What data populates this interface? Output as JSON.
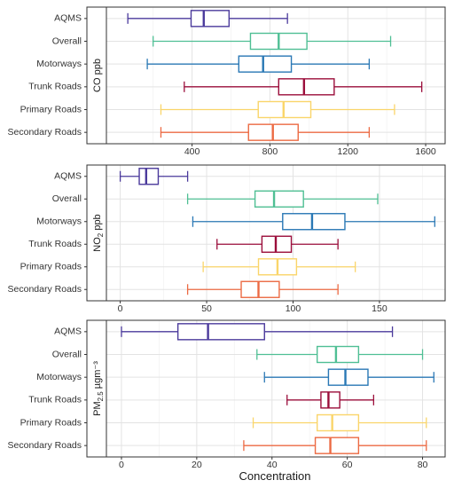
{
  "chart_data": {
    "type": "boxplot",
    "xlabel": "Concentration",
    "categories": [
      "AQMS",
      "Overall",
      "Motorways",
      "Trunk Roads",
      "Primary Roads",
      "Secondary Roads"
    ],
    "colors": {
      "AQMS": "#4b3a9c",
      "Overall": "#4fbf94",
      "Motorways": "#2a78b5",
      "Trunk Roads": "#9b0e3b",
      "Primary Roads": "#fad56a",
      "Secondary Roads": "#ec6a43"
    },
    "panels": [
      {
        "strip": "CO ppb",
        "strip_main": "CO ppb",
        "xlim": [
          -40,
          1700
        ],
        "xticks": [
          400,
          800,
          1200,
          1600
        ],
        "tick_labels": [
          "400",
          "800",
          "1200",
          "1600"
        ],
        "boxes": [
          {
            "category": "AQMS",
            "whisker_low": 70,
            "q1": 395,
            "median": 460,
            "q3": 590,
            "whisker_high": 890
          },
          {
            "category": "Overall",
            "whisker_low": 200,
            "q1": 700,
            "median": 845,
            "q3": 990,
            "whisker_high": 1420
          },
          {
            "category": "Motorways",
            "whisker_low": 170,
            "q1": 640,
            "median": 765,
            "q3": 910,
            "whisker_high": 1310
          },
          {
            "category": "Trunk Roads",
            "whisker_low": 360,
            "q1": 845,
            "median": 975,
            "q3": 1130,
            "whisker_high": 1580
          },
          {
            "category": "Primary Roads",
            "whisker_low": 240,
            "q1": 740,
            "median": 870,
            "q3": 1010,
            "whisker_high": 1440
          },
          {
            "category": "Secondary Roads",
            "whisker_low": 240,
            "q1": 690,
            "median": 815,
            "q3": 945,
            "whisker_high": 1310
          }
        ]
      },
      {
        "strip": "NO2 ppb",
        "strip_main": "NO",
        "strip_sub": "2",
        "strip_rest": " ppb",
        "xlim": [
          -8,
          188
        ],
        "xticks": [
          0,
          50,
          100,
          150
        ],
        "tick_labels": [
          "0",
          "50",
          "100",
          "150"
        ],
        "boxes": [
          {
            "category": "AQMS",
            "whisker_low": 0,
            "q1": 11,
            "median": 15,
            "q3": 22,
            "whisker_high": 39
          },
          {
            "category": "Overall",
            "whisker_low": 39,
            "q1": 78,
            "median": 89,
            "q3": 106,
            "whisker_high": 149
          },
          {
            "category": "Motorways",
            "whisker_low": 42,
            "q1": 94,
            "median": 111,
            "q3": 130,
            "whisker_high": 182
          },
          {
            "category": "Trunk Roads",
            "whisker_low": 56,
            "q1": 82,
            "median": 90,
            "q3": 99,
            "whisker_high": 126
          },
          {
            "category": "Primary Roads",
            "whisker_low": 48,
            "q1": 80,
            "median": 91,
            "q3": 102,
            "whisker_high": 136
          },
          {
            "category": "Secondary Roads",
            "whisker_low": 39,
            "q1": 70,
            "median": 80,
            "q3": 92,
            "whisker_high": 126
          }
        ]
      },
      {
        "strip": "PM2.5 µgm⁻³",
        "strip_main": "PM",
        "strip_sub": "2.5",
        "strip_rest": " µgm⁻³",
        "xlim": [
          -4,
          86
        ],
        "xticks": [
          0,
          20,
          40,
          60,
          80
        ],
        "tick_labels": [
          "0",
          "20",
          "40",
          "60",
          "80"
        ],
        "boxes": [
          {
            "category": "AQMS",
            "whisker_low": 0,
            "q1": 15,
            "median": 23,
            "q3": 38,
            "whisker_high": 72
          },
          {
            "category": "Overall",
            "whisker_low": 36,
            "q1": 52,
            "median": 57,
            "q3": 63,
            "whisker_high": 80
          },
          {
            "category": "Motorways",
            "whisker_low": 38,
            "q1": 55,
            "median": 59.5,
            "q3": 65.5,
            "whisker_high": 83
          },
          {
            "category": "Trunk Roads",
            "whisker_low": 44,
            "q1": 53,
            "median": 55,
            "q3": 58,
            "whisker_high": 67
          },
          {
            "category": "Primary Roads",
            "whisker_low": 35,
            "q1": 52,
            "median": 56,
            "q3": 63,
            "whisker_high": 81
          },
          {
            "category": "Secondary Roads",
            "whisker_low": 32.5,
            "q1": 51.5,
            "median": 55.5,
            "q3": 63,
            "whisker_high": 81
          }
        ]
      }
    ],
    "grid": true,
    "legend": "none"
  }
}
